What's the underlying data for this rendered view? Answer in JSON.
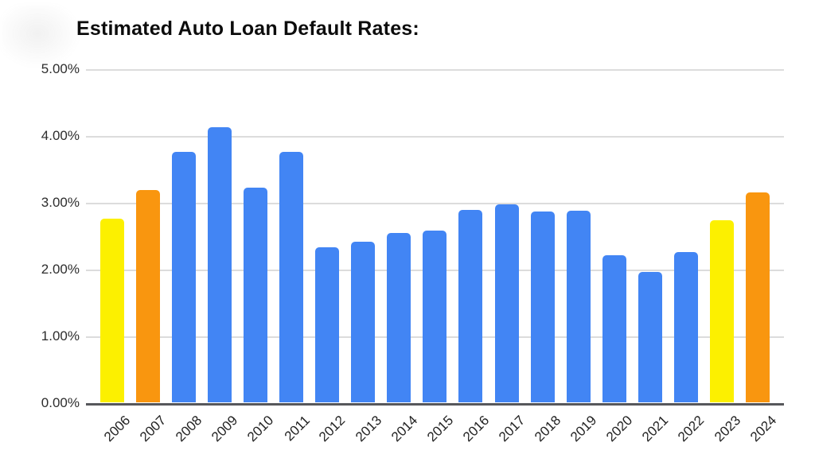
{
  "title": "Estimated Auto Loan Default Rates:",
  "colors": {
    "bar_blue": "#4285F4",
    "bar_yellow": "#FCF000",
    "bar_orange": "#F9960F",
    "gridline": "#dcdcdc",
    "axis_baseline": "#56575b",
    "tick_text": "#2d2d2d",
    "title_text": "#0c0c0c",
    "background": "#ffffff"
  },
  "chart_data": {
    "type": "bar",
    "title": "Estimated Auto Loan Default Rates:",
    "xlabel": "",
    "ylabel": "",
    "ylim": [
      0,
      5
    ],
    "grid": true,
    "legend": false,
    "y_ticks": [
      "5.00%",
      "4.00%",
      "3.00%",
      "2.00%",
      "1.00%",
      "0.00%"
    ],
    "categories": [
      "2006",
      "2007",
      "2008",
      "2009",
      "2010",
      "2011",
      "2012",
      "2013",
      "2014",
      "2015",
      "2016",
      "2017",
      "2018",
      "2019",
      "2020",
      "2021",
      "2022",
      "2023",
      "2024"
    ],
    "values": [
      2.75,
      3.18,
      3.75,
      4.12,
      3.21,
      3.75,
      2.32,
      2.4,
      2.54,
      2.57,
      2.88,
      2.96,
      2.86,
      2.87,
      2.2,
      1.95,
      2.25,
      2.73,
      3.14
    ],
    "bar_colors": [
      "#FCF000",
      "#F9960F",
      "#4285F4",
      "#4285F4",
      "#4285F4",
      "#4285F4",
      "#4285F4",
      "#4285F4",
      "#4285F4",
      "#4285F4",
      "#4285F4",
      "#4285F4",
      "#4285F4",
      "#4285F4",
      "#4285F4",
      "#4285F4",
      "#4285F4",
      "#FCF000",
      "#F9960F"
    ]
  }
}
